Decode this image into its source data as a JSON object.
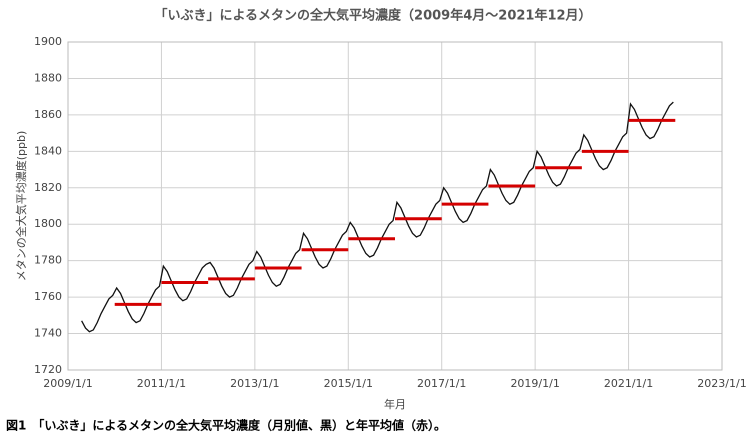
{
  "chart_data": {
    "type": "line",
    "title": "「いぶき」によるメタンの全大気平均濃度（2009年4月～2021年12月）",
    "xlabel": "年月",
    "ylabel": "メタンの全大気平均濃度(ppb)",
    "caption": "図1　「いぶき」によるメタンの全大気平均濃度（月別値、黒）と年平均値（赤）。",
    "xlim": [
      "2009/1/1",
      "2023/1/1"
    ],
    "xticks": [
      "2009/1/1",
      "2011/1/1",
      "2013/1/1",
      "2015/1/1",
      "2017/1/1",
      "2019/1/1",
      "2021/1/1",
      "2023/1/1"
    ],
    "ylim": [
      1720,
      1900
    ],
    "yticks": [
      1720,
      1740,
      1760,
      1780,
      1800,
      1820,
      1840,
      1860,
      1880,
      1900
    ],
    "grid": true,
    "series": [
      {
        "color": "#111111",
        "x": [
          "2009/4",
          "2009/5",
          "2009/6",
          "2009/7",
          "2009/8",
          "2009/9",
          "2009/10",
          "2009/11",
          "2009/12",
          "2010/1",
          "2010/2",
          "2010/3",
          "2010/4",
          "2010/5",
          "2010/6",
          "2010/7",
          "2010/8",
          "2010/9",
          "2010/10",
          "2010/11",
          "2010/12",
          "2011/1",
          "2011/2",
          "2011/3",
          "2011/4",
          "2011/5",
          "2011/6",
          "2011/7",
          "2011/8",
          "2011/9",
          "2011/10",
          "2011/11",
          "2011/12",
          "2012/1",
          "2012/2",
          "2012/3",
          "2012/4",
          "2012/5",
          "2012/6",
          "2012/7",
          "2012/8",
          "2012/9",
          "2012/10",
          "2012/11",
          "2012/12",
          "2013/1",
          "2013/2",
          "2013/3",
          "2013/4",
          "2013/5",
          "2013/6",
          "2013/7",
          "2013/8",
          "2013/9",
          "2013/10",
          "2013/11",
          "2013/12",
          "2014/1",
          "2014/2",
          "2014/3",
          "2014/4",
          "2014/5",
          "2014/6",
          "2014/7",
          "2014/8",
          "2014/9",
          "2014/10",
          "2014/11",
          "2014/12",
          "2015/1",
          "2015/2",
          "2015/3",
          "2015/4",
          "2015/5",
          "2015/6",
          "2015/7",
          "2015/8",
          "2015/9",
          "2015/10",
          "2015/11",
          "2015/12",
          "2016/1",
          "2016/2",
          "2016/3",
          "2016/4",
          "2016/5",
          "2016/6",
          "2016/7",
          "2016/8",
          "2016/9",
          "2016/10",
          "2016/11",
          "2016/12",
          "2017/1",
          "2017/2",
          "2017/3",
          "2017/4",
          "2017/5",
          "2017/6",
          "2017/7",
          "2017/8",
          "2017/9",
          "2017/10",
          "2017/11",
          "2017/12",
          "2018/1",
          "2018/2",
          "2018/3",
          "2018/4",
          "2018/5",
          "2018/6",
          "2018/7",
          "2018/8",
          "2018/9",
          "2018/10",
          "2018/11",
          "2018/12",
          "2019/1",
          "2019/2",
          "2019/3",
          "2019/4",
          "2019/5",
          "2019/6",
          "2019/7",
          "2019/8",
          "2019/9",
          "2019/10",
          "2019/11",
          "2019/12",
          "2020/1",
          "2020/2",
          "2020/3",
          "2020/4",
          "2020/5",
          "2020/6",
          "2020/7",
          "2020/8",
          "2020/9",
          "2020/10",
          "2020/11",
          "2020/12",
          "2021/1",
          "2021/2",
          "2021/3",
          "2021/4",
          "2021/5",
          "2021/6",
          "2021/7",
          "2021/8",
          "2021/9",
          "2021/10",
          "2021/11",
          "2021/12"
        ],
        "values": [
          1747,
          1743,
          1741,
          1742,
          1746,
          1751,
          1755,
          1759,
          1761,
          1765,
          1762,
          1757,
          1752,
          1748,
          1746,
          1747,
          1751,
          1756,
          1760,
          1764,
          1766,
          1777,
          1774,
          1769,
          1764,
          1760,
          1758,
          1759,
          1763,
          1768,
          1772,
          1776,
          1778,
          1779,
          1776,
          1771,
          1766,
          1762,
          1760,
          1761,
          1765,
          1770,
          1774,
          1778,
          1780,
          1785,
          1782,
          1777,
          1772,
          1768,
          1766,
          1767,
          1771,
          1776,
          1780,
          1784,
          1786,
          1795,
          1792,
          1787,
          1782,
          1778,
          1776,
          1777,
          1781,
          1786,
          1790,
          1794,
          1796,
          1801,
          1798,
          1793,
          1788,
          1784,
          1782,
          1783,
          1787,
          1792,
          1796,
          1800,
          1802,
          1812,
          1809,
          1804,
          1799,
          1795,
          1793,
          1794,
          1798,
          1803,
          1807,
          1811,
          1813,
          1820,
          1817,
          1812,
          1807,
          1803,
          1801,
          1802,
          1806,
          1811,
          1815,
          1819,
          1821,
          1830,
          1827,
          1822,
          1817,
          1813,
          1811,
          1812,
          1816,
          1821,
          1825,
          1829,
          1831,
          1840,
          1837,
          1832,
          1827,
          1823,
          1821,
          1822,
          1826,
          1831,
          1835,
          1839,
          1841,
          1849,
          1846,
          1841,
          1836,
          1832,
          1830,
          1831,
          1835,
          1840,
          1844,
          1848,
          1850,
          1866,
          1863,
          1858,
          1853,
          1849,
          1847,
          1848,
          1852,
          1857,
          1861,
          1865,
          1867
        ]
      },
      {
        "color": "#d40000",
        "type": "annual",
        "x": [
          2010,
          2011,
          2012,
          2013,
          2014,
          2015,
          2016,
          2017,
          2018,
          2019,
          2020,
          2021
        ],
        "values": [
          1756,
          1768,
          1770,
          1776,
          1786,
          1792,
          1803,
          1811,
          1821,
          1831,
          1840,
          1857
        ]
      }
    ]
  }
}
